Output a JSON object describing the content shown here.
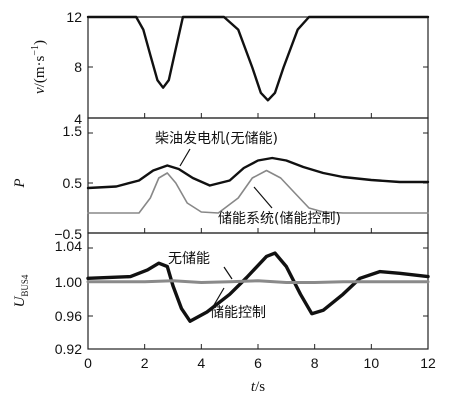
{
  "chart_data": [
    {
      "type": "line",
      "ylabel": "v/(m·s⁻¹)",
      "ylabel_parts": {
        "var": "v",
        "unit": "/(m·s",
        "sup": "−1",
        "close": ")"
      },
      "ylim": [
        4,
        12
      ],
      "yticks": [
        "12",
        "8",
        "4"
      ],
      "series": [
        {
          "color": "#111111",
          "x": [
            0,
            1.7,
            1.95,
            2.2,
            2.45,
            2.65,
            2.85,
            3.1,
            3.35,
            4.8,
            5.3,
            5.8,
            6.1,
            6.35,
            6.6,
            6.9,
            7.4,
            7.8,
            12
          ],
          "y": [
            12,
            12,
            11,
            9,
            7,
            6.4,
            7,
            9.5,
            12,
            12,
            11,
            8,
            6,
            5.4,
            6,
            8,
            11,
            12,
            12
          ]
        }
      ]
    },
    {
      "type": "line",
      "ylabel": "P",
      "ylim": [
        -0.5,
        1.5
      ],
      "yticks": [
        "1.5",
        "0.5",
        "−0.5"
      ],
      "annotations": [
        {
          "text": "柴油发电机(无储能)"
        },
        {
          "text": "储能系统(储能控制)"
        }
      ],
      "series": [
        {
          "color": "#111111",
          "x": [
            0,
            1,
            1.8,
            2.3,
            2.8,
            3.2,
            3.7,
            4.3,
            5,
            5.5,
            6,
            6.5,
            7,
            7.6,
            8.3,
            9,
            10,
            11,
            12
          ],
          "y": [
            0.4,
            0.43,
            0.55,
            0.75,
            0.85,
            0.78,
            0.6,
            0.45,
            0.55,
            0.8,
            0.95,
            1.0,
            0.95,
            0.82,
            0.7,
            0.62,
            0.56,
            0.52,
            0.52
          ]
        },
        {
          "color": "#888888",
          "x": [
            0,
            1.8,
            2.2,
            2.5,
            2.8,
            3.1,
            3.5,
            4,
            4.6,
            5.3,
            5.8,
            6.3,
            6.8,
            7.3,
            7.8,
            8.3,
            9,
            12
          ],
          "y": [
            -0.1,
            -0.1,
            0.2,
            0.6,
            0.7,
            0.5,
            0.1,
            -0.08,
            -0.1,
            0.2,
            0.6,
            0.75,
            0.6,
            0.3,
            0.0,
            -0.08,
            -0.1,
            -0.1
          ]
        }
      ]
    },
    {
      "type": "line",
      "ylabel": "UBUS4",
      "ylabel_parts": {
        "var": "U",
        "sub": "BUS4"
      },
      "ylim": [
        0.92,
        1.04
      ],
      "yticks": [
        "1.04",
        "1.00",
        "0.96",
        "0.92"
      ],
      "xlabel": "t/s",
      "xlabel_parts": {
        "var": "t",
        "unit": "/s"
      },
      "xlim": [
        0,
        12
      ],
      "xticks": [
        "0",
        "2",
        "4",
        "6",
        "8",
        "10",
        "12"
      ],
      "annotations": [
        {
          "text": "无储能"
        },
        {
          "text": "储能控制"
        }
      ],
      "series": [
        {
          "color": "#111111",
          "x": [
            0,
            1.5,
            2.1,
            2.5,
            2.8,
            3.0,
            3.3,
            3.6,
            4.2,
            5,
            5.6,
            6.3,
            6.6,
            7.0,
            7.5,
            7.9,
            8.3,
            9,
            9.6,
            10.3,
            11,
            12
          ],
          "y": [
            1.004,
            1.006,
            1.014,
            1.022,
            1.018,
            0.995,
            0.968,
            0.953,
            0.964,
            0.985,
            1.005,
            1.03,
            1.034,
            1.018,
            0.985,
            0.962,
            0.966,
            0.985,
            1.004,
            1.012,
            1.01,
            1.006
          ]
        },
        {
          "color": "#8a8a8a",
          "x": [
            0,
            1,
            2,
            3,
            4,
            5,
            6,
            7,
            8,
            9,
            10,
            11,
            12
          ],
          "y": [
            1.0,
            1.0,
            1.0,
            1.001,
            0.999,
            1.0,
            1.001,
            0.999,
            0.999,
            1.0,
            1.0,
            1.0,
            1.0
          ]
        }
      ]
    }
  ]
}
